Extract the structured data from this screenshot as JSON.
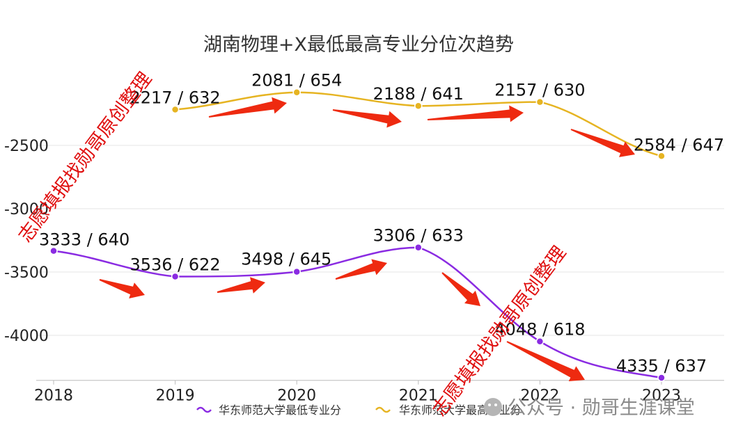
{
  "chart_data": {
    "type": "line",
    "title": "湖南物理+X最低最高专业分位次趋势",
    "categories": [
      "2018",
      "2019",
      "2020",
      "2021",
      "2022",
      "2023"
    ],
    "ylim": [
      -4350,
      -2000
    ],
    "yticks": [
      -2500,
      -3000,
      -3500,
      -4000
    ],
    "ytick_labels": [
      "-2500",
      "-3000",
      "-3500",
      "-4000"
    ],
    "grid": true,
    "legend_position": "bottom",
    "series": [
      {
        "name": "华东师范大学最低专业分",
        "color": "#8a2be2",
        "values": [
          -3333,
          -3536,
          -3498,
          -3306,
          -4048,
          -4335
        ],
        "labels": [
          "3333 / 640",
          "3536 / 622",
          "3498 / 645",
          "3306 / 633",
          "4048 / 618",
          "4335 / 637"
        ]
      },
      {
        "name": "华东师范大学最高专业分",
        "color": "#e6b422",
        "values": [
          null,
          -2217,
          -2081,
          -2188,
          -2157,
          -2584
        ],
        "labels": [
          "",
          "2217 / 632",
          "2081 / 654",
          "2188 / 641",
          "2157 / 630",
          "2584 / 647"
        ]
      }
    ]
  },
  "watermark": "志愿填报找勋哥原创整理",
  "footer": {
    "separator": "·",
    "text": "公众号 · 勋哥生涯课堂"
  },
  "colors": {
    "arrow": "#ee2a10",
    "grid": "#e6e6e6",
    "axis": "#bbbbbb"
  }
}
